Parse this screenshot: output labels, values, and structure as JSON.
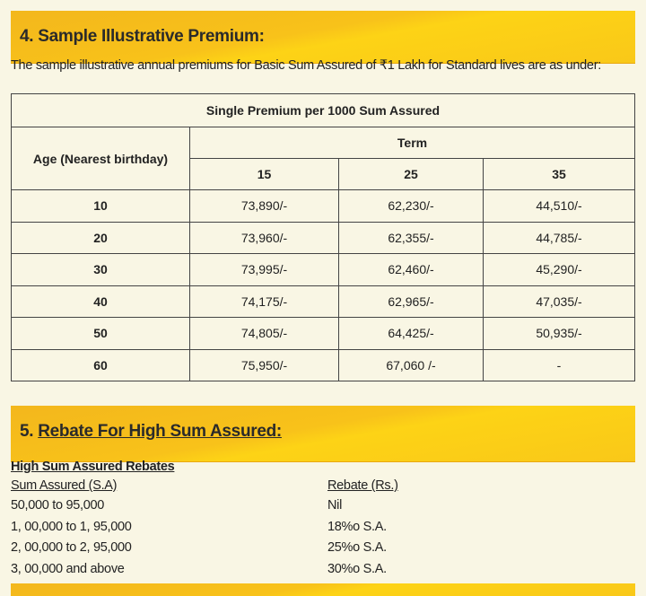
{
  "section4": {
    "title": "4. Sample Illustrative Premium:",
    "intro": "The sample illustrative annual premiums for Basic Sum Assured of ₹1 Lakh for Standard lives are as under:",
    "table": {
      "caption": "Single Premium per 1000 Sum Assured",
      "age_header": "Age (Nearest birthday)",
      "term_header": "Term",
      "terms": [
        "15",
        "25",
        "35"
      ],
      "rows": [
        [
          "10",
          "73,890/-",
          "62,230/-",
          "44,510/-"
        ],
        [
          "20",
          "73,960/-",
          "62,355/-",
          "44,785/-"
        ],
        [
          "30",
          "73,995/-",
          "62,460/-",
          "45,290/-"
        ],
        [
          "40",
          "74,175/-",
          "62,965/-",
          "47,035/-"
        ],
        [
          "50",
          "74,805/-",
          "64,425/-",
          "50,935/-"
        ],
        [
          "60",
          "75,950/-",
          "67,060 /-",
          "-"
        ]
      ]
    }
  },
  "section5": {
    "title_number": "5.",
    "title": "Rebate For High Sum Assured:",
    "subtitle": "High Sum Assured Rebates",
    "col1": "Sum Assured (S.A)",
    "col2": "Rebate (Rs.)",
    "rows": [
      [
        "50,000 to 95,000",
        "Nil"
      ],
      [
        "1, 00,000 to 1, 95,000",
        "18%o S.A."
      ],
      [
        "2, 00,000 to 2, 95,000",
        "25%o S.A."
      ],
      [
        "3, 00,000 and above",
        "30%o S.A."
      ]
    ]
  },
  "colors": {
    "banner": "#f8c21a",
    "background": "#f9f6e4"
  }
}
